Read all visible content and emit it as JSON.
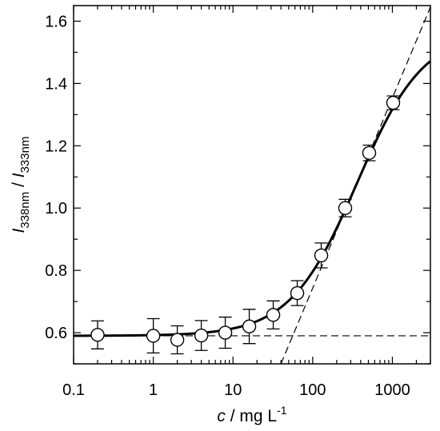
{
  "chart_data": {
    "type": "scatter",
    "title": "",
    "xlabel": {
      "italic": "c",
      "rest": " / mg L",
      "sup": "-1"
    },
    "ylabel": {
      "num_italic": "I",
      "num_sub": "338nm",
      "sep": " / ",
      "den_italic": "I",
      "den_sub": "333nm"
    },
    "xscale": "log",
    "xlim": [
      0.1,
      3000
    ],
    "ylim": [
      0.5,
      1.65
    ],
    "grid": false,
    "xtick_labels": [
      "0.1",
      "1",
      "10",
      "100",
      "1000"
    ],
    "xtick_values": [
      0.1,
      1,
      10,
      100,
      1000
    ],
    "ytick_labels": [
      "0.6",
      "0.8",
      "1.0",
      "1.2",
      "1.4",
      "1.6"
    ],
    "ytick_values": [
      0.6,
      0.8,
      1.0,
      1.2,
      1.4,
      1.6
    ],
    "yminor_values": [
      0.5,
      0.7,
      0.9,
      1.1,
      1.3,
      1.5
    ],
    "points": [
      {
        "x": 0.2,
        "y": 0.593,
        "err": 0.045
      },
      {
        "x": 1.0,
        "y": 0.59,
        "err": 0.055
      },
      {
        "x": 2.0,
        "y": 0.577,
        "err": 0.045
      },
      {
        "x": 4.0,
        "y": 0.591,
        "err": 0.048
      },
      {
        "x": 8.0,
        "y": 0.6,
        "err": 0.05
      },
      {
        "x": 16.0,
        "y": 0.62,
        "err": 0.055
      },
      {
        "x": 32.0,
        "y": 0.657,
        "err": 0.045
      },
      {
        "x": 64.0,
        "y": 0.727,
        "err": 0.04
      },
      {
        "x": 128.0,
        "y": 0.848,
        "err": 0.04
      },
      {
        "x": 256.0,
        "y": 1.0,
        "err": 0.028
      },
      {
        "x": 512.0,
        "y": 1.177,
        "err": 0.025
      },
      {
        "x": 1024.0,
        "y": 1.338,
        "err": 0.022
      }
    ],
    "fit_curve": {
      "style": "solid",
      "lower": 0.59,
      "upper": 1.57,
      "log_x0": 2.556,
      "width": 0.42
    },
    "reference_lines": [
      {
        "style": "dashed",
        "from": {
          "x": 0.1,
          "y": 0.59
        },
        "to": {
          "x": 3000,
          "y": 0.59
        }
      },
      {
        "style": "dashed",
        "from": {
          "x": 40,
          "y": 0.5
        },
        "to": {
          "x": 3000,
          "y": 1.645
        }
      }
    ]
  }
}
